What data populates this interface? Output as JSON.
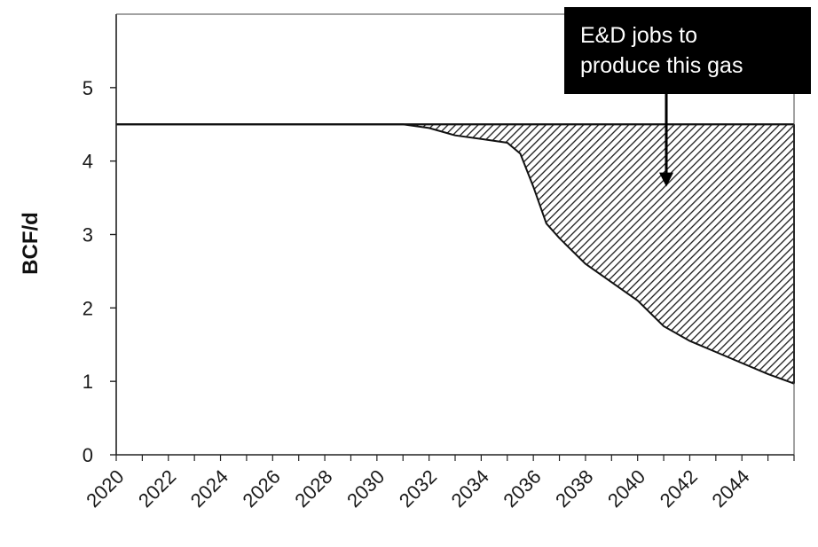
{
  "chart_data": {
    "type": "area",
    "title": "",
    "xlabel": "",
    "ylabel": "BCF/d",
    "xlim": [
      2020,
      2046
    ],
    "ylim": [
      0,
      6
    ],
    "yticks": [
      0,
      1,
      2,
      3,
      4,
      5
    ],
    "xtick_labels": [
      "2020",
      "2022",
      "2024",
      "2026",
      "2028",
      "2030",
      "2032",
      "2034",
      "2036",
      "2038",
      "2040",
      "2042",
      "2044"
    ],
    "grid": false,
    "series": [
      {
        "kind": "flat-line",
        "x": [
          2020,
          2046
        ],
        "y": [
          4.5,
          4.5
        ]
      },
      {
        "kind": "declining-production",
        "x": [
          2020,
          2031,
          2032,
          2033,
          2034,
          2035,
          2035.5,
          2036,
          2036.5,
          2037,
          2038,
          2039,
          2040,
          2041,
          2042,
          2043,
          2044,
          2045,
          2046
        ],
        "y": [
          4.5,
          4.5,
          4.45,
          4.35,
          4.3,
          4.25,
          4.1,
          3.65,
          3.15,
          2.95,
          2.6,
          2.35,
          2.1,
          1.75,
          1.55,
          1.4,
          1.25,
          1.1,
          0.97
        ]
      }
    ],
    "fill_between": {
      "pattern": "diagonal-hatch",
      "color": "#1a1a1a"
    },
    "annotations": [
      {
        "lines": [
          "E&D jobs to",
          "produce this gas"
        ],
        "background": "#000000",
        "text_color": "#ffffff",
        "arrow_target": [
          2041.1,
          3.65
        ]
      }
    ]
  }
}
